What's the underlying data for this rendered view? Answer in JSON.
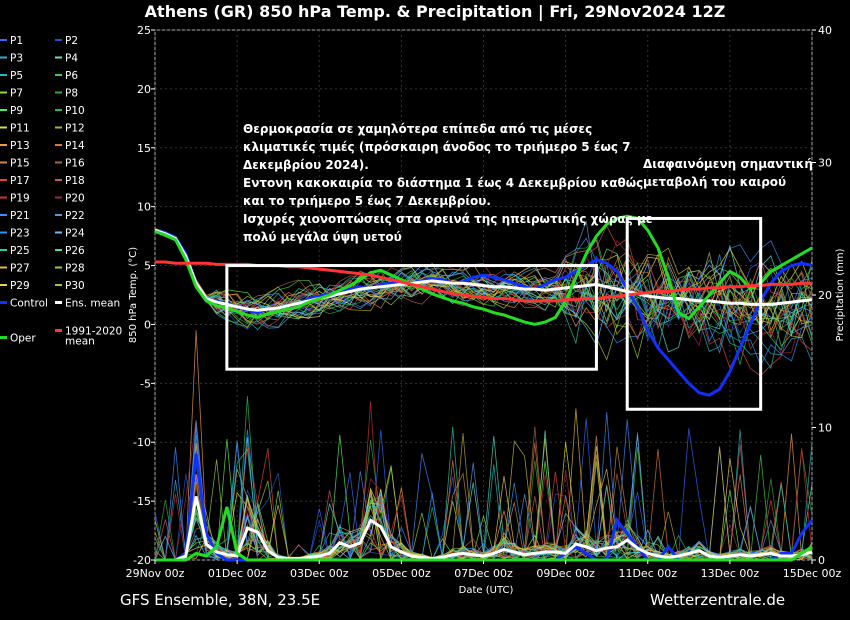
{
  "chart_data": {
    "type": "line",
    "title": "Athens  (GR)  850 hPa Temp. & Precipitation | Fri, 29Nov2024 12Z",
    "ylabel": "850 hPa Temp. (°C)",
    "y2label": "Precipitation (mm)",
    "xlabel": "Date (UTC)",
    "ylim": [
      -20,
      25
    ],
    "y2lim": [
      0,
      40
    ],
    "yticks": [
      "25",
      "20",
      "15",
      "10",
      "5",
      "0",
      "-5",
      "-10",
      "-15",
      "-20"
    ],
    "y2ticks": [
      "40",
      "30",
      "20",
      "10",
      "0"
    ],
    "xticks": [
      "29Nov 00z",
      "01Dec 00z",
      "03Dec 00z",
      "05Dec 00z",
      "07Dec 00z",
      "09Dec 00z",
      "11Dec 00z",
      "13Dec 00z",
      "15Dec 00z"
    ],
    "x_hours": [
      0,
      6,
      12,
      18,
      24,
      30,
      36,
      42,
      48,
      54,
      60,
      66,
      72,
      78,
      84,
      90,
      96,
      102,
      108,
      114,
      120,
      126,
      132,
      138,
      144,
      150,
      156,
      162,
      168,
      174,
      180,
      186,
      192,
      198,
      204,
      210,
      216,
      222,
      228,
      234,
      240,
      246,
      252,
      258,
      264,
      270,
      276,
      282,
      288,
      294,
      300,
      306,
      312,
      318,
      324,
      330,
      336,
      342,
      348,
      354,
      360,
      366,
      372,
      378,
      384
    ],
    "series": [
      {
        "name": "Control",
        "color": "#1030ff",
        "values": [
          8.0,
          7.8,
          7.4,
          6.0,
          3.5,
          2.2,
          2.0,
          1.8,
          1.5,
          1.2,
          1.0,
          1.3,
          1.4,
          1.6,
          1.8,
          2.2,
          2.4,
          2.6,
          2.8,
          3.0,
          3.2,
          3.0,
          3.4,
          3.5,
          3.6,
          3.5,
          3.7,
          3.9,
          3.8,
          3.5,
          3.6,
          4.0,
          4.2,
          4.0,
          3.8,
          3.5,
          3.2,
          3.0,
          3.4,
          3.8,
          4.0,
          4.5,
          5.0,
          5.5,
          5.2,
          4.5,
          3.0,
          1.5,
          -0.5,
          -2.0,
          -3.0,
          -4.0,
          -5.0,
          -5.8,
          -6.0,
          -5.5,
          -4.0,
          -2.0,
          0.0,
          2.0,
          3.5,
          4.5,
          5.0,
          5.2,
          5.0
        ]
      },
      {
        "name": "Ens. mean",
        "color": "#ffffff",
        "values": [
          8.0,
          7.7,
          7.3,
          5.8,
          3.5,
          2.2,
          1.9,
          1.7,
          1.5,
          1.3,
          1.2,
          1.3,
          1.4,
          1.6,
          1.8,
          2.0,
          2.2,
          2.4,
          2.6,
          2.8,
          3.0,
          3.1,
          3.2,
          3.3,
          3.4,
          3.5,
          3.6,
          3.7,
          3.6,
          3.5,
          3.5,
          3.4,
          3.3,
          3.2,
          3.2,
          3.1,
          3.0,
          3.0,
          2.9,
          3.0,
          3.1,
          3.2,
          3.3,
          3.4,
          3.2,
          3.0,
          2.8,
          2.6,
          2.4,
          2.3,
          2.2,
          2.2,
          2.1,
          2.0,
          2.0,
          1.9,
          1.8,
          1.8,
          1.7,
          1.7,
          1.7,
          1.8,
          1.9,
          2.0,
          2.1
        ]
      },
      {
        "name": "Oper",
        "color": "#22dd22",
        "values": [
          7.9,
          7.6,
          7.2,
          5.5,
          3.2,
          2.0,
          1.6,
          1.4,
          1.1,
          0.8,
          0.6,
          0.9,
          1.1,
          1.3,
          1.5,
          1.9,
          2.2,
          2.5,
          2.9,
          3.3,
          3.8,
          4.4,
          4.6,
          4.2,
          3.8,
          3.4,
          3.0,
          2.6,
          2.3,
          2.0,
          1.8,
          1.5,
          1.3,
          1.0,
          0.8,
          0.5,
          0.2,
          0.0,
          0.2,
          0.6,
          2.0,
          4.0,
          6.0,
          7.5,
          8.5,
          9.0,
          9.2,
          9.0,
          8.0,
          6.5,
          4.0,
          1.0,
          0.5,
          1.5,
          2.5,
          3.5,
          4.5,
          4.0,
          3.0,
          3.5,
          4.5,
          5.0,
          5.5,
          6.0,
          6.5
        ]
      },
      {
        "name": "1991-2020 mean",
        "color": "#ff3333",
        "values": [
          5.3,
          5.3,
          5.2,
          5.2,
          5.2,
          5.2,
          5.1,
          5.1,
          5.1,
          5.1,
          5.0,
          5.0,
          5.0,
          4.9,
          4.9,
          4.8,
          4.7,
          4.6,
          4.5,
          4.4,
          4.3,
          4.2,
          4.0,
          3.8,
          3.6,
          3.4,
          3.2,
          3.0,
          2.8,
          2.6,
          2.5,
          2.4,
          2.3,
          2.2,
          2.2,
          2.1,
          2.0,
          2.0,
          2.0,
          2.0,
          2.1,
          2.1,
          2.2,
          2.2,
          2.3,
          2.4,
          2.5,
          2.6,
          2.7,
          2.8,
          2.8,
          2.9,
          3.0,
          3.0,
          3.1,
          3.1,
          3.2,
          3.2,
          3.3,
          3.3,
          3.4,
          3.4,
          3.4,
          3.5,
          3.5
        ]
      }
    ],
    "precip_series": [
      {
        "name": "Control",
        "color": "#1030ff",
        "values": [
          0,
          0,
          0,
          0.5,
          8,
          2,
          0.5,
          0,
          0,
          0,
          0,
          0,
          0,
          0,
          0,
          0,
          0,
          0,
          0,
          0,
          0,
          0,
          0,
          0,
          0,
          0,
          0,
          0,
          0,
          0,
          0,
          0,
          0,
          0,
          0,
          0,
          0,
          0,
          0,
          0,
          0.5,
          1,
          0.5,
          0,
          0,
          3,
          2,
          1,
          0,
          0,
          1,
          0,
          0,
          0,
          0,
          0,
          0,
          0,
          0,
          0,
          0,
          0.5,
          0.5,
          2,
          3
        ]
      },
      {
        "name": "Ens. mean",
        "color": "#ffffff",
        "values": [
          0,
          0,
          0,
          0.3,
          4.8,
          1.2,
          0.6,
          0.4,
          0.3,
          2.4,
          2.1,
          0.7,
          0.2,
          0.1,
          0.1,
          0.2,
          0.3,
          0.5,
          1.3,
          1.0,
          1.3,
          3.0,
          2.5,
          1.0,
          0.6,
          0.3,
          0.2,
          0.1,
          0.2,
          0.4,
          0.5,
          0.4,
          0.3,
          0.5,
          0.8,
          0.6,
          0.4,
          0.5,
          0.6,
          0.6,
          0.5,
          1.2,
          1.0,
          0.7,
          0.9,
          1.0,
          1.5,
          0.9,
          0.5,
          0.3,
          0.2,
          0.3,
          0.5,
          0.7,
          0.3,
          0.2,
          0.3,
          0.4,
          0.3,
          0.4,
          0.5,
          0.3,
          0.3,
          0.4,
          0.6
        ]
      },
      {
        "name": "Oper",
        "color": "#22dd22",
        "values": [
          0,
          0,
          0,
          0,
          0.5,
          0.3,
          1,
          4,
          0.5,
          0,
          0,
          0,
          0,
          0,
          0,
          0,
          0,
          0,
          0,
          0,
          0,
          0,
          0,
          0,
          0,
          0,
          0,
          0,
          0,
          0,
          0,
          0,
          0,
          0,
          0,
          0,
          0,
          0,
          0,
          0,
          0,
          0,
          0,
          0,
          0,
          0,
          0,
          0,
          0,
          0,
          0,
          0,
          0,
          0,
          0,
          0,
          0,
          0,
          0,
          0,
          0,
          0,
          0,
          0.5,
          1
        ]
      }
    ],
    "ensemble_members": [
      "P1",
      "P2",
      "P3",
      "P4",
      "P5",
      "P6",
      "P7",
      "P8",
      "P9",
      "P10",
      "P11",
      "P12",
      "P13",
      "P14",
      "P15",
      "P16",
      "P17",
      "P18",
      "P19",
      "P20",
      "P21",
      "P22",
      "P23",
      "P24",
      "P25",
      "P26",
      "P27",
      "P28",
      "P29",
      "P30"
    ],
    "member_colors": [
      "#3366ff",
      "#2255cc",
      "#33aacc",
      "#66ddcc",
      "#22bbbb",
      "#44cc44",
      "#88dd44",
      "#33aa33",
      "#55ee55",
      "#22bb55",
      "#dddd33",
      "#bbaa22",
      "#ee9944",
      "#dd7733",
      "#cc8855",
      "#aa6644",
      "#dd4444",
      "#cc5566",
      "#cc3333",
      "#aa2244",
      "#4488ff",
      "#5599dd",
      "#2299ff",
      "#66bbff",
      "#22ccaa",
      "#44ddbb",
      "#ddbb33",
      "#99cc33",
      "#eecc55",
      "#bbbb44"
    ],
    "legend": [
      {
        "label": "P1",
        "color": "#3366ff"
      },
      {
        "label": "P2",
        "color": "#2255cc"
      },
      {
        "label": "P3",
        "color": "#33aacc"
      },
      {
        "label": "P4",
        "color": "#66ddcc"
      },
      {
        "label": "P5",
        "color": "#22bbbb"
      },
      {
        "label": "P6",
        "color": "#44cc44"
      },
      {
        "label": "P7",
        "color": "#88dd44"
      },
      {
        "label": "P8",
        "color": "#33aa33"
      },
      {
        "label": "P9",
        "color": "#55ee55"
      },
      {
        "label": "P10",
        "color": "#22bb55"
      },
      {
        "label": "P11",
        "color": "#dddd33"
      },
      {
        "label": "P12",
        "color": "#bbaa22"
      },
      {
        "label": "P13",
        "color": "#ee9944"
      },
      {
        "label": "P14",
        "color": "#dd7733"
      },
      {
        "label": "P15",
        "color": "#cc8855"
      },
      {
        "label": "P16",
        "color": "#aa6644"
      },
      {
        "label": "P17",
        "color": "#dd4444"
      },
      {
        "label": "P18",
        "color": "#cc5566"
      },
      {
        "label": "P19",
        "color": "#cc3333"
      },
      {
        "label": "P20",
        "color": "#aa2244"
      },
      {
        "label": "P21",
        "color": "#4488ff"
      },
      {
        "label": "P22",
        "color": "#5599dd"
      },
      {
        "label": "P23",
        "color": "#2299ff"
      },
      {
        "label": "P24",
        "color": "#66bbff"
      },
      {
        "label": "P25",
        "color": "#22ccaa"
      },
      {
        "label": "P26",
        "color": "#44ddbb"
      },
      {
        "label": "P27",
        "color": "#ddbb33"
      },
      {
        "label": "P28",
        "color": "#99cc33"
      },
      {
        "label": "P29",
        "color": "#eecc55"
      },
      {
        "label": "P30",
        "color": "#bbbb44"
      },
      {
        "label": "Control",
        "color": "#1030ff"
      },
      {
        "label": "Ens. mean",
        "color": "#ffffff"
      },
      {
        "label": "Oper",
        "color": "#22dd22"
      },
      {
        "label": "1991-2020 mean",
        "color": "#ff3333"
      }
    ],
    "annotations": {
      "left_text": [
        "Θερμοκρασία σε χαμηλότερα επίπεδα από τις μέσες",
        "κλιματικές τιμές (πρόσκαιρη άνοδος το τριήμερο 5 έως 7",
        "Δεκεμβρίου 2024).",
        "Εντονη κακοκαιρία το διάστημα 1  έως 4 Δεκεμβρίου καθώς",
        "και το τριήμερο 5 έως 7 Δεκεμβρίου.",
        " Ισχυρές χιονοπτώσεις στα ορεινά της ηπειρωτικής χώρας με",
        "πολύ μεγάλα ύψη υετού"
      ],
      "right_text": [
        "Διαφαινόμενη σημαντική",
        "μεταβολή του καιρού"
      ],
      "box1_hours": [
        42,
        258
      ],
      "box1_temp": [
        -3.8,
        5
      ],
      "box2_hours": [
        276,
        354
      ],
      "box2_temp": [
        -7.2,
        9
      ]
    },
    "footer_left": "GFS Ensemble, 38N, 23.5E",
    "footer_right": "Wetterzentrale.de"
  }
}
